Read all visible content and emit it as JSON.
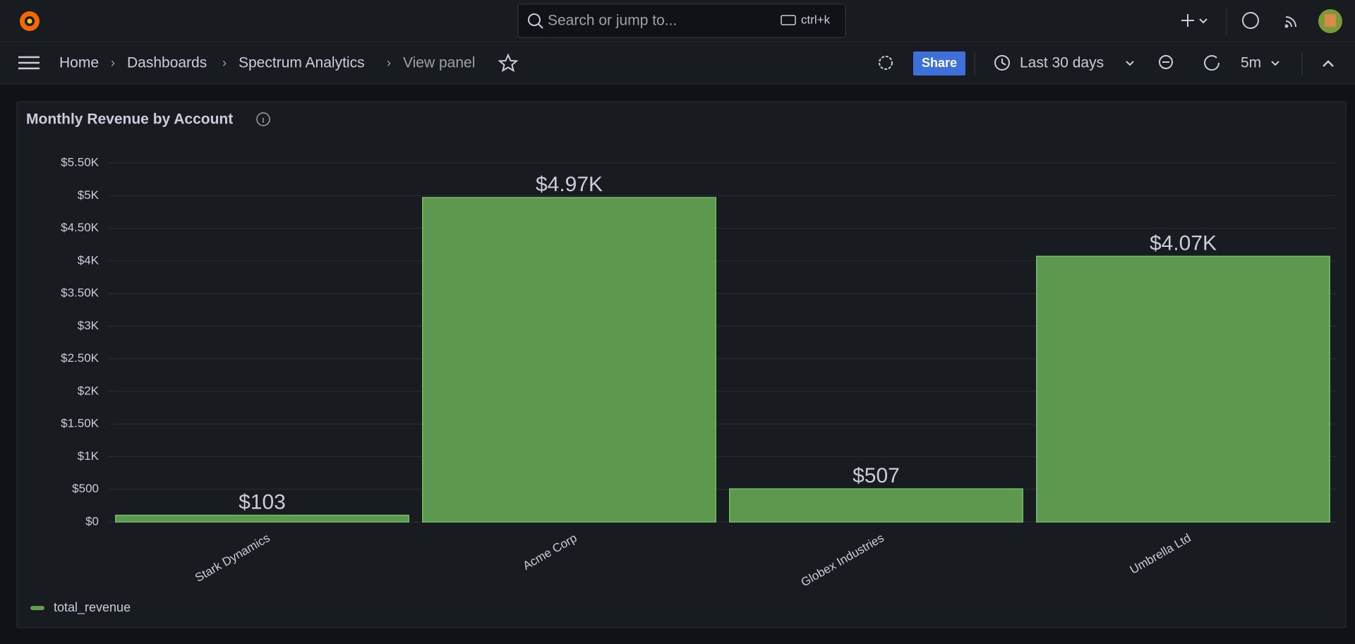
{
  "topbar": {
    "search_placeholder": "Search or jump to...",
    "shortcut": "ctrl+k"
  },
  "breadcrumbs": [
    "Home",
    "Dashboards",
    "Spectrum Analytics",
    "View panel"
  ],
  "toolbar": {
    "share": "Share",
    "time_range": "Last 30 days",
    "refresh_interval": "5m"
  },
  "chart_data": {
    "type": "bar",
    "title": "Monthly Revenue by Account",
    "categories": [
      "Stark Dynamics",
      "Acme Corp",
      "Globex Industries",
      "Umbrella Ltd"
    ],
    "series": [
      {
        "name": "total_revenue",
        "color": "#629e51",
        "values": [
          103,
          4970,
          507,
          4070
        ],
        "value_labels": [
          "$103",
          "$4.97K",
          "$507",
          "$4.07K"
        ]
      }
    ],
    "ylim": [
      0,
      5500
    ],
    "yticks": [
      {
        "value": 0,
        "label": "$0"
      },
      {
        "value": 500,
        "label": "$500"
      },
      {
        "value": 1000,
        "label": "$1K"
      },
      {
        "value": 1500,
        "label": "$1.50K"
      },
      {
        "value": 2000,
        "label": "$2K"
      },
      {
        "value": 2500,
        "label": "$2.50K"
      },
      {
        "value": 3000,
        "label": "$3K"
      },
      {
        "value": 3500,
        "label": "$3.50K"
      },
      {
        "value": 4000,
        "label": "$4K"
      },
      {
        "value": 4500,
        "label": "$4.50K"
      },
      {
        "value": 5000,
        "label": "$5K"
      },
      {
        "value": 5500,
        "label": "$5.50K"
      }
    ],
    "grid": true,
    "legend": "bottom-left"
  }
}
